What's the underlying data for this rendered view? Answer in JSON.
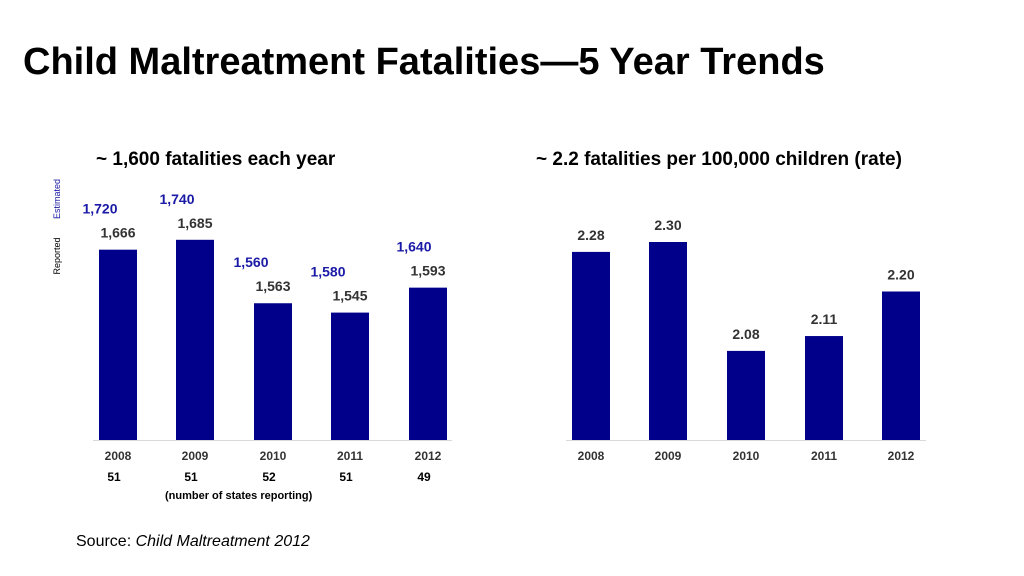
{
  "title": "Child Maltreatment Fatalities—5 Year Trends",
  "footnote": "(number of states reporting)",
  "source": {
    "prefix": "Source: ",
    "title": "Child Maltreatment 2012"
  },
  "side_labels": {
    "estimated": "Estimated",
    "reported": "Reported"
  },
  "colors": {
    "bar": "#00008b",
    "estimated_label": "#1a1aa6",
    "reported_label": "#333333"
  },
  "chart_data": [
    {
      "type": "bar",
      "title": "~ 1,600 fatalities each year",
      "categories": [
        "2008",
        "2009",
        "2010",
        "2011",
        "2012"
      ],
      "values": [
        1666,
        1685,
        1563,
        1545,
        1593
      ],
      "value_labels": [
        "1,666",
        "1,685",
        "1,563",
        "1,545",
        "1,593"
      ],
      "estimated": [
        1720,
        1740,
        1560,
        1580,
        1640
      ],
      "estimated_labels": [
        "1,720",
        "1,740",
        "1,560",
        "1,580",
        "1,640"
      ],
      "states_reporting": [
        "51",
        "51",
        "52",
        "51",
        "49"
      ],
      "ylim": [
        1300,
        1700
      ],
      "grid": false
    },
    {
      "type": "bar",
      "title": "~ 2.2 fatalities per 100,000 children (rate)",
      "categories": [
        "2008",
        "2009",
        "2010",
        "2011",
        "2012"
      ],
      "values": [
        2.28,
        2.3,
        2.08,
        2.11,
        2.2
      ],
      "value_labels": [
        "2.28",
        "2.30",
        "2.08",
        "2.11",
        "2.20"
      ],
      "ylim": [
        1.9,
        2.3
      ],
      "grid": false
    }
  ]
}
